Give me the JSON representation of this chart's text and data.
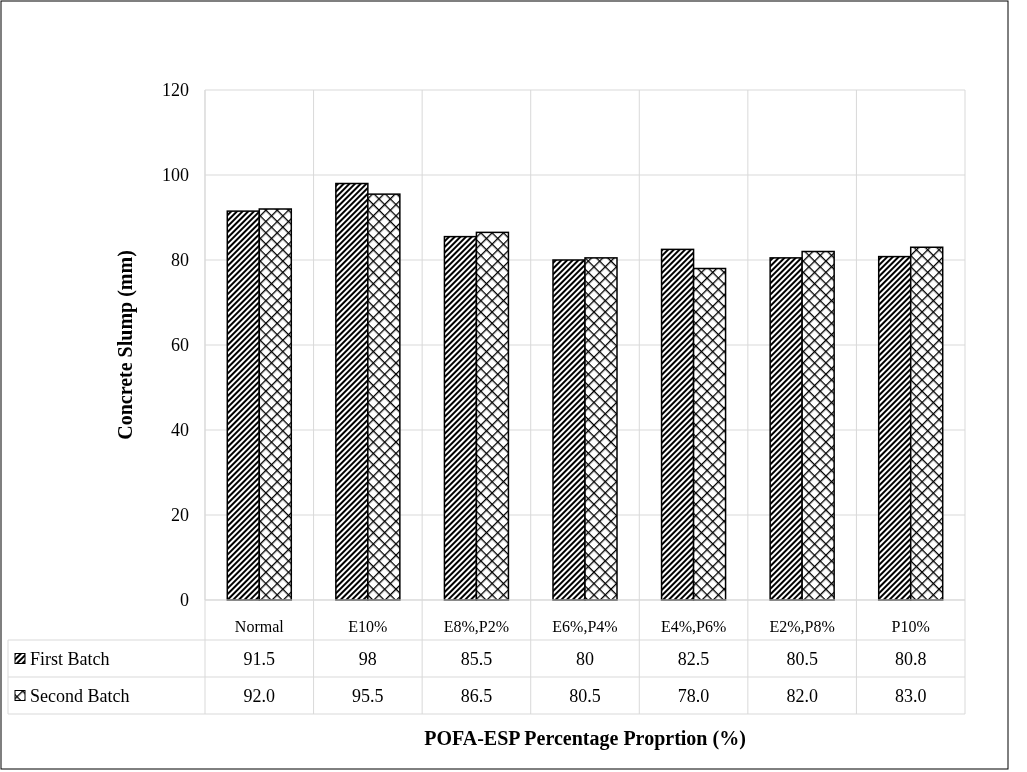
{
  "chart_data": {
    "type": "bar",
    "xlabel": "POFA-ESP Percentage Proprtion (%)",
    "ylabel": "Concrete Slump (mm)",
    "categories": [
      "Normal",
      "E10%",
      "E8%,P2%",
      "E6%,P4%",
      "E4%,P6%",
      "E2%,P8%",
      "P10%"
    ],
    "series": [
      {
        "name": "First Batch",
        "color": "#000000",
        "values": [
          91.5,
          98,
          85.5,
          80,
          82.5,
          80.5,
          80.8
        ],
        "value_labels": [
          "91.5",
          "98",
          "85.5",
          "80",
          "82.5",
          "80.5",
          "80.8"
        ]
      },
      {
        "name": "Second Batch",
        "color": "#000000",
        "values": [
          92.0,
          95.5,
          86.5,
          80.5,
          78.0,
          82.0,
          83.0
        ],
        "value_labels": [
          "92.0",
          "95.5",
          "86.5",
          "80.5",
          "78.0",
          "82.0",
          "83.0"
        ]
      }
    ],
    "ylim": [
      0,
      120
    ],
    "yticks": [
      0,
      20,
      40,
      60,
      80,
      100,
      120
    ],
    "grid": true,
    "legend": "bottom"
  }
}
